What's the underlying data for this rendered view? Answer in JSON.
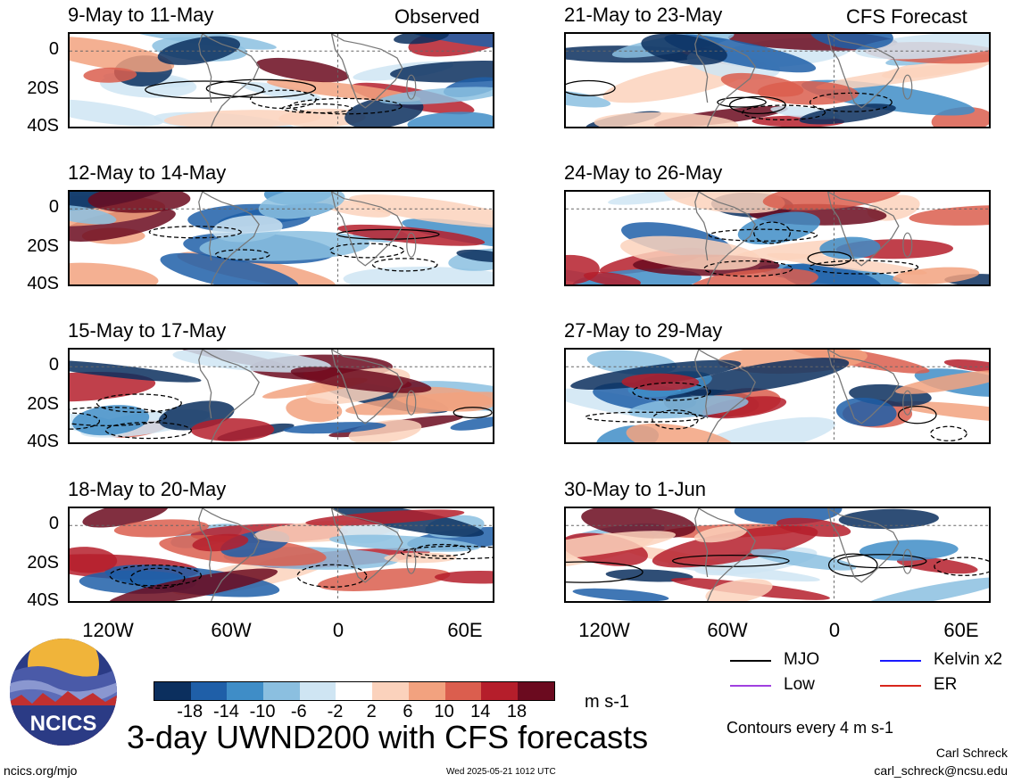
{
  "chart_data": {
    "type": "heatmap",
    "title": "3-day UWND200 with CFS forecasts",
    "units": "m s-1",
    "colorbar": {
      "ticks": [
        "-18",
        "-14",
        "-10",
        "-6",
        "-2",
        "2",
        "6",
        "10",
        "14",
        "18"
      ],
      "colors": [
        "#0b2f5e",
        "#1f5fa8",
        "#3f8dc7",
        "#8bbfe0",
        "#cfe5f3",
        "#ffffff",
        "#fbd2bc",
        "#f2a27f",
        "#db5e4e",
        "#b51e2b",
        "#6b0a1f"
      ]
    },
    "y_ticks": [
      "0",
      "20S",
      "40S"
    ],
    "x_ticks": [
      "120W",
      "60W",
      "0",
      "60E"
    ],
    "observed_label": "Observed",
    "forecast_label": "CFS Forecast",
    "panels": [
      {
        "title": "9-May to 11-May",
        "column": "observed"
      },
      {
        "title": "12-May to 14-May",
        "column": "observed"
      },
      {
        "title": "15-May to 17-May",
        "column": "observed"
      },
      {
        "title": "18-May to 20-May",
        "column": "observed"
      },
      {
        "title": "21-May to 23-May",
        "column": "forecast"
      },
      {
        "title": "24-May to 26-May",
        "column": "forecast"
      },
      {
        "title": "27-May to 29-May",
        "column": "forecast"
      },
      {
        "title": "30-May to 1-Jun",
        "column": "forecast"
      }
    ]
  },
  "legend": {
    "items": [
      {
        "label": "MJO",
        "color": "#000000"
      },
      {
        "label": "Kelvin x2",
        "color": "#1a1aff"
      },
      {
        "label": "Low",
        "color": "#a040e0"
      },
      {
        "label": "ER",
        "color": "#d8261c"
      }
    ],
    "contours_note": "Contours every 4 m s-1"
  },
  "footer": {
    "logo_text": "NCICS",
    "url": "ncics.org/mjo",
    "timestamp": "Wed 2025-05-21 1012 UTC",
    "author": "Carl Schreck",
    "email": "carl_schreck@ncsu.edu"
  }
}
